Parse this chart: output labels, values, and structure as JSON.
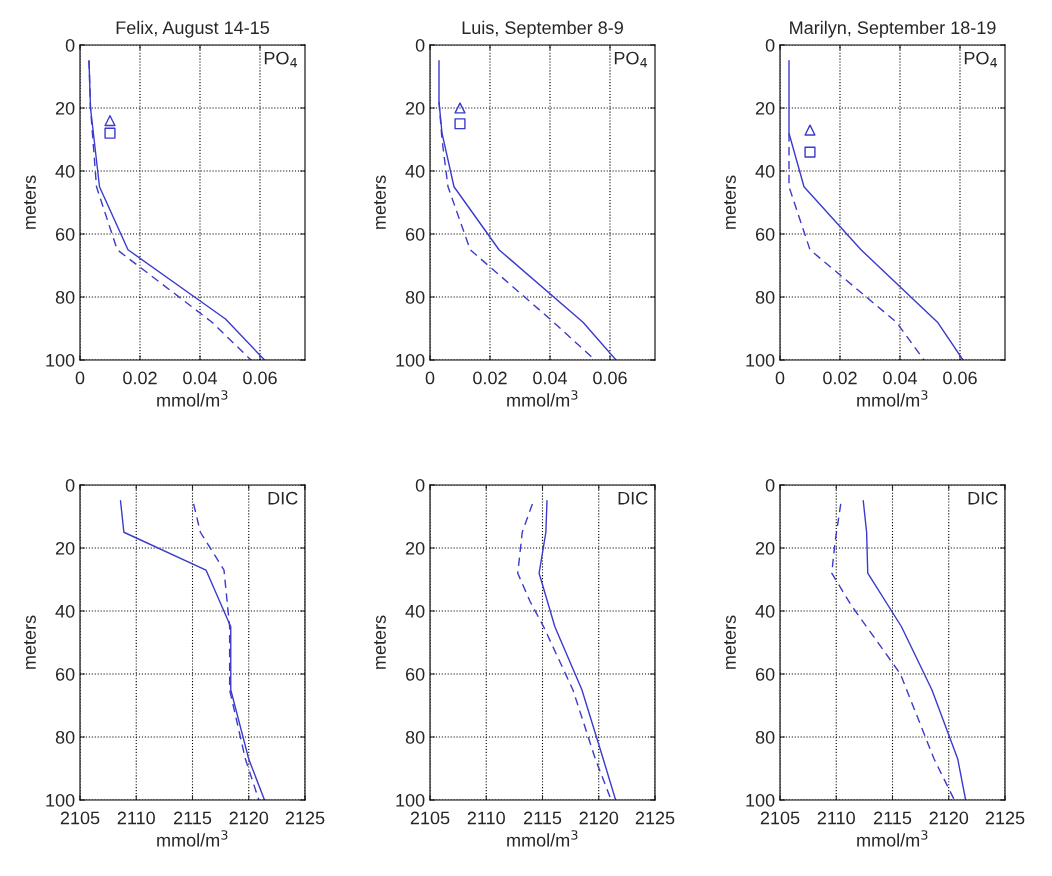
{
  "chart_data": [
    {
      "type": "line",
      "title": "Felix, August 14-15",
      "xlabel": "mmol/m$^{3}$",
      "ylabel": "meters",
      "annotations": [
        "PO$_{4}$"
      ],
      "xlim": [
        0,
        0.075
      ],
      "xticks": [
        0,
        0.02,
        0.04,
        0.06
      ],
      "ylim": [
        100,
        0
      ],
      "yticks": [
        0,
        20,
        40,
        60,
        80,
        100
      ],
      "grid": true,
      "series": [
        {
          "type": "line",
          "line_style": "solid",
          "color": "#3a3acc",
          "x": [
            0.003,
            0.0035,
            0.0065,
            0.016,
            0.0485,
            0.0615
          ],
          "values": [
            5,
            20,
            45,
            65,
            87,
            100
          ]
        },
        {
          "type": "line",
          "line_style": "dashed",
          "color": "#3a3acc",
          "x": [
            0.003,
            0.0035,
            0.0055,
            0.0124,
            0.044,
            0.057
          ],
          "values": [
            5,
            20,
            45,
            65,
            88,
            100
          ]
        },
        {
          "type": "scatter",
          "marker": "triangle",
          "color": "#3a3acc",
          "x": [
            0.01
          ],
          "values": [
            24
          ]
        },
        {
          "type": "scatter",
          "marker": "square",
          "color": "#3a3acc",
          "x": [
            0.01
          ],
          "values": [
            28
          ]
        }
      ]
    },
    {
      "type": "line",
      "title": "Luis, September 8-9",
      "xlabel": "mmol/m$^{3}$",
      "ylabel": "meters",
      "annotations": [
        "PO$_{4}$"
      ],
      "xlim": [
        0,
        0.075
      ],
      "xticks": [
        0,
        0.02,
        0.04,
        0.06
      ],
      "ylim": [
        100,
        0
      ],
      "yticks": [
        0,
        20,
        40,
        60,
        80,
        100
      ],
      "grid": true,
      "series": [
        {
          "type": "line",
          "line_style": "solid",
          "color": "#3a3acc",
          "x": [
            0.003,
            0.003,
            0.004,
            0.008,
            0.023,
            0.051,
            0.062
          ],
          "values": [
            5,
            18,
            28,
            45,
            65,
            88,
            100
          ]
        },
        {
          "type": "line",
          "line_style": "dashed",
          "color": "#3a3acc",
          "x": [
            0.003,
            0.004,
            0.006,
            0.0134,
            0.04,
            0.055
          ],
          "values": [
            18,
            30,
            45,
            65,
            87,
            100
          ]
        },
        {
          "type": "scatter",
          "marker": "triangle",
          "color": "#3a3acc",
          "x": [
            0.01
          ],
          "values": [
            20
          ]
        },
        {
          "type": "scatter",
          "marker": "square",
          "color": "#3a3acc",
          "x": [
            0.01
          ],
          "values": [
            25
          ]
        }
      ]
    },
    {
      "type": "line",
      "title": "Marilyn, September 18-19",
      "xlabel": "mmol/m$^{3}$",
      "ylabel": "meters",
      "annotations": [
        "PO$_{4}$"
      ],
      "xlim": [
        0,
        0.075
      ],
      "xticks": [
        0,
        0.02,
        0.04,
        0.06
      ],
      "ylim": [
        100,
        0
      ],
      "yticks": [
        0,
        20,
        40,
        60,
        80,
        100
      ],
      "grid": true,
      "series": [
        {
          "type": "line",
          "line_style": "solid",
          "color": "#3a3acc",
          "x": [
            0.003,
            0.003,
            0.008,
            0.027,
            0.0525,
            0.061
          ],
          "values": [
            5,
            28,
            45,
            65,
            88,
            100
          ]
        },
        {
          "type": "line",
          "line_style": "dashed",
          "color": "#3a3acc",
          "x": [
            0.003,
            0.003,
            0.01,
            0.0388,
            0.048
          ],
          "values": [
            28,
            45,
            65,
            88,
            100
          ]
        },
        {
          "type": "scatter",
          "marker": "triangle",
          "color": "#3a3acc",
          "x": [
            0.01
          ],
          "values": [
            27
          ]
        },
        {
          "type": "scatter",
          "marker": "square",
          "color": "#3a3acc",
          "x": [
            0.01
          ],
          "values": [
            34
          ]
        }
      ]
    },
    {
      "type": "line",
      "xlabel": "mmol/m$^{3}$",
      "ylabel": "meters",
      "annotations": [
        "DIC"
      ],
      "xlim": [
        2105,
        2125
      ],
      "xticks": [
        2105,
        2110,
        2115,
        2120,
        2125
      ],
      "ylim": [
        100,
        0
      ],
      "yticks": [
        0,
        20,
        40,
        60,
        80,
        100
      ],
      "grid": true,
      "series": [
        {
          "type": "line",
          "line_style": "solid",
          "color": "#3a3acc",
          "x": [
            2108.6,
            2108.9,
            2116.2,
            2118.4,
            2118.4,
            2120,
            2121.4
          ],
          "values": [
            5,
            15,
            27,
            45,
            65,
            87,
            100
          ]
        },
        {
          "type": "line",
          "line_style": "dashed",
          "color": "#3a3acc",
          "x": [
            2115.1,
            2115.7,
            2117.8,
            2118.3,
            2118.3,
            2119.7,
            2120.9
          ],
          "values": [
            6,
            15,
            27,
            45,
            65,
            87,
            100
          ]
        }
      ]
    },
    {
      "type": "line",
      "xlabel": "mmol/m$^{3}$",
      "ylabel": "meters",
      "annotations": [
        "DIC"
      ],
      "xlim": [
        2105,
        2125
      ],
      "xticks": [
        2105,
        2110,
        2115,
        2120,
        2125
      ],
      "ylim": [
        100,
        0
      ],
      "yticks": [
        0,
        20,
        40,
        60,
        80,
        100
      ],
      "grid": true,
      "series": [
        {
          "type": "line",
          "line_style": "solid",
          "color": "#3a3acc",
          "x": [
            2115.4,
            2115.3,
            2114.7,
            2116.1,
            2118.5,
            2120.4,
            2121.5
          ],
          "values": [
            5,
            15,
            28,
            45,
            65,
            87,
            100
          ]
        },
        {
          "type": "line",
          "line_style": "dashed",
          "color": "#3a3acc",
          "x": [
            2114.1,
            2113.2,
            2112.8,
            2113.9,
            2115.1,
            2117.7,
            2119.7,
            2121.1
          ],
          "values": [
            6,
            15,
            28,
            37,
            45,
            65,
            87,
            100
          ]
        }
      ]
    },
    {
      "type": "line",
      "xlabel": "mmol/m$^{3}$",
      "ylabel": "meters",
      "annotations": [
        "DIC"
      ],
      "xlim": [
        2105,
        2125
      ],
      "xticks": [
        2105,
        2110,
        2115,
        2120,
        2125
      ],
      "ylim": [
        100,
        0
      ],
      "yticks": [
        0,
        20,
        40,
        60,
        80,
        100
      ],
      "grid": true,
      "series": [
        {
          "type": "line",
          "line_style": "solid",
          "color": "#3a3acc",
          "x": [
            2112.4,
            2112.7,
            2112.8,
            2115.8,
            2118.5,
            2120.8,
            2121.5
          ],
          "values": [
            5,
            15,
            28,
            45,
            65,
            87,
            100
          ]
        },
        {
          "type": "line",
          "line_style": "dashed",
          "color": "#3a3acc",
          "x": [
            2110.4,
            2109.9,
            2109.6,
            2111.3,
            2115.7,
            2118.7,
            2120.5
          ],
          "values": [
            6,
            18,
            28,
            38,
            60,
            87,
            100
          ]
        }
      ]
    }
  ]
}
